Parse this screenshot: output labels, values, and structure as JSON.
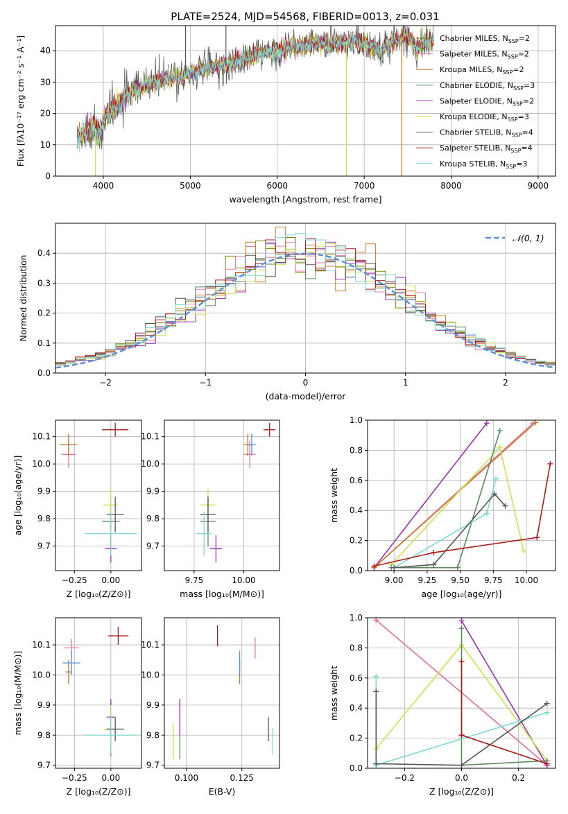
{
  "figure": {
    "title": "PLATE=2524, MJD=54568, FIBERID=0013, z=0.031"
  },
  "colors": {
    "chabrier_miles": "#808000",
    "salpeter_miles": "#e07aaf",
    "kroupa_miles": "#c97a2a",
    "chabrier_elodie": "#5a8a5a",
    "salpeter_elodie": "#9b30b0",
    "kroupa_elodie": "#cce050",
    "chabrier_stelib": "#555555",
    "salpeter_stelib": "#aa1a1a",
    "kroupa_stelib": "#7fd6d6",
    "normal": "#5b8fd6"
  },
  "chart_data": [
    {
      "id": "spectrum",
      "type": "line",
      "xlabel": "wavelength [Angstrom, rest frame]",
      "ylabel": "Flux [fλ10⁻¹⁷ erg cm⁻² s⁻¹ A⁻¹]",
      "xlim": [
        3450,
        9200
      ],
      "ylim": [
        0,
        48
      ],
      "xticks": [
        "4000",
        "5000",
        "6000",
        "7000",
        "8000",
        "9000"
      ],
      "yticks": [
        "0",
        "10",
        "20",
        "30",
        "40"
      ],
      "legend": {
        "placement": "right",
        "entries": [
          {
            "label": "Chabrier MILES, N",
            "sub": "SSP",
            "suffix": "=2",
            "color": "chabrier_miles"
          },
          {
            "label": "Salpeter MILES, N",
            "sub": "SSP",
            "suffix": "=2",
            "color": "salpeter_miles"
          },
          {
            "label": "Kroupa MILES, N",
            "sub": "SSP",
            "suffix": "=2",
            "color": "kroupa_miles"
          },
          {
            "label": "Chabrier ELODIE, N",
            "sub": "SSP",
            "suffix": "=3",
            "color": "chabrier_elodie"
          },
          {
            "label": "Salpeter ELODIE, N",
            "sub": "SSP",
            "suffix": "=2",
            "color": "salpeter_elodie"
          },
          {
            "label": "Kroupa ELODIE, N",
            "sub": "SSP",
            "suffix": "=3",
            "color": "kroupa_elodie"
          },
          {
            "label": "Chabrier STELIB, N",
            "sub": "SSP",
            "suffix": "=4",
            "color": "chabrier_stelib"
          },
          {
            "label": "Salpeter STELIB, N",
            "sub": "SSP",
            "suffix": "=4",
            "color": "salpeter_stelib"
          },
          {
            "label": "Kroupa STELIB, N",
            "sub": "SSP",
            "suffix": "=3",
            "color": "kroupa_stelib"
          }
        ]
      },
      "continuum": [
        [
          3700,
          12.5
        ],
        [
          3800,
          14
        ],
        [
          3900,
          15.5
        ],
        [
          3960,
          13
        ],
        [
          4000,
          19
        ],
        [
          4100,
          21
        ],
        [
          4200,
          23.5
        ],
        [
          4300,
          26
        ],
        [
          4400,
          28
        ],
        [
          4500,
          29
        ],
        [
          4600,
          30
        ],
        [
          4700,
          31
        ],
        [
          4800,
          31.5
        ],
        [
          4900,
          32
        ],
        [
          5000,
          33
        ],
        [
          5100,
          33.5
        ],
        [
          5200,
          34.5
        ],
        [
          5300,
          35
        ],
        [
          5400,
          35.5
        ],
        [
          5500,
          36
        ],
        [
          5600,
          37
        ],
        [
          5700,
          38
        ],
        [
          5800,
          39
        ],
        [
          5900,
          39.5
        ],
        [
          6000,
          40
        ],
        [
          6100,
          40.5
        ],
        [
          6200,
          41
        ],
        [
          6300,
          41.5
        ],
        [
          6400,
          42
        ],
        [
          6500,
          42.5
        ],
        [
          6600,
          42
        ],
        [
          6700,
          42.5
        ],
        [
          6800,
          43
        ],
        [
          6900,
          43
        ],
        [
          7000,
          42.5
        ],
        [
          7100,
          41
        ],
        [
          7200,
          39.5
        ],
        [
          7300,
          43
        ],
        [
          7400,
          44
        ],
        [
          7500,
          44.5
        ],
        [
          7600,
          41
        ],
        [
          7700,
          43
        ],
        [
          7800,
          43.5
        ]
      ],
      "glitches": [
        {
          "x": 3910,
          "to": 0,
          "color": "kroupa_elodie"
        },
        {
          "x": 6795,
          "to": 0,
          "color": "kroupa_elodie"
        },
        {
          "x": 7430,
          "to": 0,
          "color": "kroupa_miles"
        },
        {
          "x": 5410,
          "to": 48,
          "color": "chabrier_stelib"
        },
        {
          "x": 6930,
          "to": 48,
          "color": "chabrier_stelib"
        },
        {
          "x": 4945,
          "to": 48,
          "color": "chabrier_stelib"
        }
      ]
    },
    {
      "id": "residuals",
      "type": "bar",
      "xlabel": "(data-model)/error",
      "ylabel": "Normed distribution",
      "xlim": [
        -2.5,
        2.5
      ],
      "ylim": [
        0,
        0.5
      ],
      "xticks": [
        "−2",
        "−1",
        "0",
        "1",
        "2"
      ],
      "xtick_values": [
        -2,
        -1,
        0,
        1,
        2
      ],
      "yticks": [
        "0.0",
        "0.1",
        "0.2",
        "0.3",
        "0.4"
      ],
      "legend": {
        "placement": "top-right",
        "label": "𝒩(0, 1)"
      },
      "bin_width": 0.1,
      "normal_mu": 0,
      "normal_sigma": 1
    },
    {
      "id": "age_vs_Z",
      "type": "scatter",
      "xlabel": "Z [log₁₀(Z/Z⊙)]",
      "ylabel": "age  [log₁₀(age/yr)]",
      "xlim": [
        -0.38,
        0.21
      ],
      "ylim": [
        9.61,
        10.16
      ],
      "xticks": [
        "−0.25",
        "0.00"
      ],
      "xtick_values": [
        -0.25,
        0.0
      ],
      "yticks": [
        "9.7",
        "9.8",
        "9.9",
        "10.0",
        "10.1"
      ],
      "ytick_values": [
        9.7,
        9.8,
        9.9,
        10.0,
        10.1
      ],
      "points": [
        {
          "x": -0.29,
          "y": 10.035,
          "xe": 0.05,
          "ye": 0.05,
          "color": "salpeter_miles"
        },
        {
          "x": -0.29,
          "y": 10.07,
          "xe": 0.06,
          "ye": 0.04,
          "color": "kroupa_miles"
        },
        {
          "x": -0.29,
          "y": 10.07,
          "xe": 0.005,
          "ye": 0.005,
          "color": "normal"
        },
        {
          "x": 0.0,
          "y": 9.79,
          "xe": 0.06,
          "ye": 0.09,
          "color": "chabrier_elodie"
        },
        {
          "x": 0.0,
          "y": 9.69,
          "xe": 0.04,
          "ye": 0.05,
          "color": "salpeter_elodie"
        },
        {
          "x": 0.0,
          "y": 9.85,
          "xe": 0.05,
          "ye": 0.06,
          "color": "kroupa_elodie"
        },
        {
          "x": 0.03,
          "y": 9.815,
          "xe": 0.06,
          "ye": 0.065,
          "color": "chabrier_stelib"
        },
        {
          "x": 0.03,
          "y": 10.125,
          "xe": 0.09,
          "ye": 0.025,
          "color": "salpeter_stelib"
        },
        {
          "x": 0.0,
          "y": 9.745,
          "xe": 0.18,
          "ye": 0.08,
          "color": "kroupa_stelib"
        }
      ]
    },
    {
      "id": "age_vs_mass",
      "type": "scatter",
      "xlabel": "mass [log₁₀(M/M⊙)]",
      "ylabel": "",
      "xlim": [
        9.6,
        10.18
      ],
      "ylim": [
        9.61,
        10.16
      ],
      "xticks": [
        "9.75",
        "10.00"
      ],
      "xtick_values": [
        9.75,
        10.0
      ],
      "yticks": [
        "9.7",
        "9.8",
        "9.9",
        "10.0",
        "10.1"
      ],
      "ytick_values": [
        9.7,
        9.8,
        9.9,
        10.0,
        10.1
      ],
      "points": [
        {
          "x": 10.03,
          "y": 10.035,
          "xe": 0.03,
          "ye": 0.05,
          "color": "salpeter_miles"
        },
        {
          "x": 10.02,
          "y": 10.07,
          "xe": 0.02,
          "ye": 0.04,
          "color": "kroupa_miles"
        },
        {
          "x": 10.04,
          "y": 10.07,
          "xe": 0.02,
          "ye": 0.04,
          "color": "normal"
        },
        {
          "x": 9.82,
          "y": 9.79,
          "xe": 0.04,
          "ye": 0.09,
          "color": "chabrier_elodie"
        },
        {
          "x": 9.86,
          "y": 9.69,
          "xe": 0.03,
          "ye": 0.05,
          "color": "salpeter_elodie"
        },
        {
          "x": 9.82,
          "y": 9.85,
          "xe": 0.04,
          "ye": 0.06,
          "color": "kroupa_elodie"
        },
        {
          "x": 9.82,
          "y": 9.815,
          "xe": 0.04,
          "ye": 0.065,
          "color": "chabrier_stelib"
        },
        {
          "x": 10.13,
          "y": 10.125,
          "xe": 0.03,
          "ye": 0.025,
          "color": "salpeter_stelib"
        },
        {
          "x": 9.8,
          "y": 9.745,
          "xe": 0.04,
          "ye": 0.08,
          "color": "kroupa_stelib"
        }
      ]
    },
    {
      "id": "weight_vs_age",
      "type": "line",
      "xlabel": "age  [log₁₀(age/yr)]",
      "ylabel": "mass weight",
      "xlim": [
        8.8,
        10.22
      ],
      "ylim": [
        0,
        1.0
      ],
      "xticks": [
        "9.00",
        "9.25",
        "9.50",
        "9.75",
        "10.00"
      ],
      "xtick_values": [
        9.0,
        9.25,
        9.5,
        9.75,
        10.0
      ],
      "yticks": [
        "0.0",
        "0.2",
        "0.4",
        "0.6",
        "0.8",
        "1.0"
      ],
      "ytick_values": [
        0,
        0.2,
        0.4,
        0.6,
        0.8,
        1.0
      ],
      "series": [
        {
          "color": "salpeter_elodie",
          "points": [
            [
              8.85,
              0.02
            ],
            [
              9.7,
              0.98
            ]
          ]
        },
        {
          "color": "salpeter_miles",
          "points": [
            [
              8.85,
              0.02
            ],
            [
              10.05,
              0.98
            ]
          ]
        },
        {
          "color": "kroupa_miles",
          "points": [
            [
              8.85,
              0.02
            ],
            [
              10.07,
              0.985
            ]
          ]
        },
        {
          "color": "kroupa_elodie",
          "points": [
            [
              8.98,
              0.04
            ],
            [
              9.8,
              0.82
            ],
            [
              9.98,
              0.13
            ]
          ]
        },
        {
          "color": "chabrier_elodie",
          "points": [
            [
              8.98,
              0.02
            ],
            [
              9.48,
              0.02
            ],
            [
              9.8,
              0.93
            ]
          ]
        },
        {
          "color": "kroupa_stelib",
          "points": [
            [
              9.0,
              0.02
            ],
            [
              9.7,
              0.38
            ],
            [
              9.77,
              0.61
            ]
          ]
        },
        {
          "color": "chabrier_stelib",
          "points": [
            [
              9.0,
              0.02
            ],
            [
              9.3,
              0.04
            ],
            [
              9.76,
              0.51
            ],
            [
              9.84,
              0.43
            ]
          ]
        },
        {
          "color": "salpeter_stelib",
          "points": [
            [
              8.85,
              0.03
            ],
            [
              9.3,
              0.12
            ],
            [
              10.08,
              0.22
            ],
            [
              10.18,
              0.71
            ]
          ]
        }
      ]
    },
    {
      "id": "mass_vs_Z",
      "type": "scatter",
      "xlabel": "Z [log₁₀(Z/Z⊙)]",
      "ylabel": "mass [log₁₀(M/M⊙)]",
      "xlim": [
        -0.38,
        0.21
      ],
      "ylim": [
        9.69,
        10.19
      ],
      "xticks": [
        "−0.25",
        "0.00"
      ],
      "xtick_values": [
        -0.25,
        0.0
      ],
      "yticks": [
        "9.7",
        "9.8",
        "9.9",
        "10.0",
        "10.1"
      ],
      "ytick_values": [
        9.7,
        9.8,
        9.9,
        10.0,
        10.1
      ],
      "points": [
        {
          "x": -0.27,
          "y": 10.09,
          "xe": 0.05,
          "ye": 0.03,
          "color": "salpeter_miles"
        },
        {
          "x": -0.29,
          "y": 10.01,
          "xe": 0.02,
          "ye": 0.04,
          "color": "kroupa_miles"
        },
        {
          "x": -0.27,
          "y": 10.04,
          "xe": 0.06,
          "ye": 0.04,
          "color": "normal"
        },
        {
          "x": 0.0,
          "y": 9.82,
          "xe": 0.03,
          "ye": 0.09,
          "color": "chabrier_elodie"
        },
        {
          "x": 0.0,
          "y": 9.86,
          "xe": 0.03,
          "ye": 0.06,
          "color": "salpeter_elodie"
        },
        {
          "x": 0.0,
          "y": 9.82,
          "xe": 0.05,
          "ye": 0.08,
          "color": "kroupa_elodie"
        },
        {
          "x": 0.03,
          "y": 9.82,
          "xe": 0.06,
          "ye": 0.04,
          "color": "chabrier_stelib"
        },
        {
          "x": 0.05,
          "y": 10.13,
          "xe": 0.07,
          "ye": 0.03,
          "color": "salpeter_stelib"
        },
        {
          "x": 0.0,
          "y": 9.8,
          "xe": 0.18,
          "ye": 0.06,
          "color": "kroupa_stelib"
        }
      ]
    },
    {
      "id": "mass_vs_ebv",
      "type": "scatter",
      "xlabel": "E(B-V)",
      "ylabel": "",
      "xlim": [
        0.09,
        0.142
      ],
      "ylim": [
        9.69,
        10.19
      ],
      "xticks": [
        "0.100",
        "0.125"
      ],
      "xtick_values": [
        0.1,
        0.125
      ],
      "yticks": [
        "9.7",
        "9.8",
        "9.9",
        "10.0",
        "10.1"
      ],
      "ytick_values": [
        9.7,
        9.8,
        9.9,
        10.0,
        10.1
      ],
      "points": [
        {
          "x": 0.131,
          "y": 10.09,
          "xe": 0,
          "ye": 0.035,
          "color": "salpeter_miles"
        },
        {
          "x": 0.124,
          "y": 10.01,
          "xe": 0,
          "ye": 0.04,
          "color": "kroupa_miles"
        },
        {
          "x": 0.124,
          "y": 10.04,
          "xe": 0,
          "ye": 0.04,
          "color": "normal"
        },
        {
          "x": 0.097,
          "y": 9.82,
          "xe": 0,
          "ye": 0.1,
          "color": "chabrier_elodie"
        },
        {
          "x": 0.097,
          "y": 9.86,
          "xe": 0,
          "ye": 0.06,
          "color": "salpeter_elodie"
        },
        {
          "x": 0.094,
          "y": 9.78,
          "xe": 0,
          "ye": 0.06,
          "color": "kroupa_elodie"
        },
        {
          "x": 0.137,
          "y": 9.82,
          "xe": 0,
          "ye": 0.04,
          "color": "chabrier_stelib"
        },
        {
          "x": 0.114,
          "y": 10.13,
          "xe": 0,
          "ye": 0.035,
          "color": "salpeter_stelib"
        },
        {
          "x": 0.139,
          "y": 9.78,
          "xe": 0,
          "ye": 0.045,
          "color": "kroupa_stelib"
        }
      ]
    },
    {
      "id": "weight_vs_Z",
      "type": "line",
      "xlabel": "Z [log₁₀(Z/Z⊙)]",
      "ylabel": "mass weight",
      "xlim": [
        -0.33,
        0.33
      ],
      "ylim": [
        0,
        1.0
      ],
      "xticks": [
        "−0.2",
        "0.0",
        "0.2"
      ],
      "xtick_values": [
        -0.2,
        0.0,
        0.2
      ],
      "yticks": [
        "0.0",
        "0.2",
        "0.4",
        "0.6",
        "0.8",
        "1.0"
      ],
      "ytick_values": [
        0,
        0.2,
        0.4,
        0.6,
        0.8,
        1.0
      ],
      "series": [
        {
          "color": "kroupa_miles",
          "points": [
            [
              -0.3,
              0.985
            ],
            [
              0.3,
              0.02
            ]
          ]
        },
        {
          "color": "salpeter_miles",
          "points": [
            [
              -0.3,
              0.985
            ],
            [
              0.3,
              0.02
            ]
          ]
        },
        {
          "color": "salpeter_elodie",
          "points": [
            [
              0.0,
              0.98
            ],
            [
              0.3,
              0.02
            ]
          ]
        },
        {
          "color": "kroupa_elodie",
          "points": [
            [
              -0.3,
              0.13
            ],
            [
              0.0,
              0.82
            ],
            [
              0.3,
              0.05
            ]
          ]
        },
        {
          "color": "chabrier_elodie",
          "points": [
            [
              0.0,
              0.93
            ],
            [
              0.0,
              0.02
            ],
            [
              0.3,
              0.05
            ]
          ]
        },
        {
          "color": "kroupa_stelib",
          "points": [
            [
              -0.3,
              0.61
            ],
            [
              -0.3,
              0.02
            ],
            [
              0.3,
              0.37
            ]
          ]
        },
        {
          "color": "chabrier_stelib",
          "points": [
            [
              -0.3,
              0.51
            ],
            [
              -0.3,
              0.03
            ],
            [
              0.0,
              0.02
            ],
            [
              0.3,
              0.43
            ]
          ]
        },
        {
          "color": "salpeter_stelib",
          "points": [
            [
              0.0,
              0.71
            ],
            [
              0.0,
              0.22
            ],
            [
              0.3,
              0.03
            ]
          ]
        }
      ]
    }
  ]
}
